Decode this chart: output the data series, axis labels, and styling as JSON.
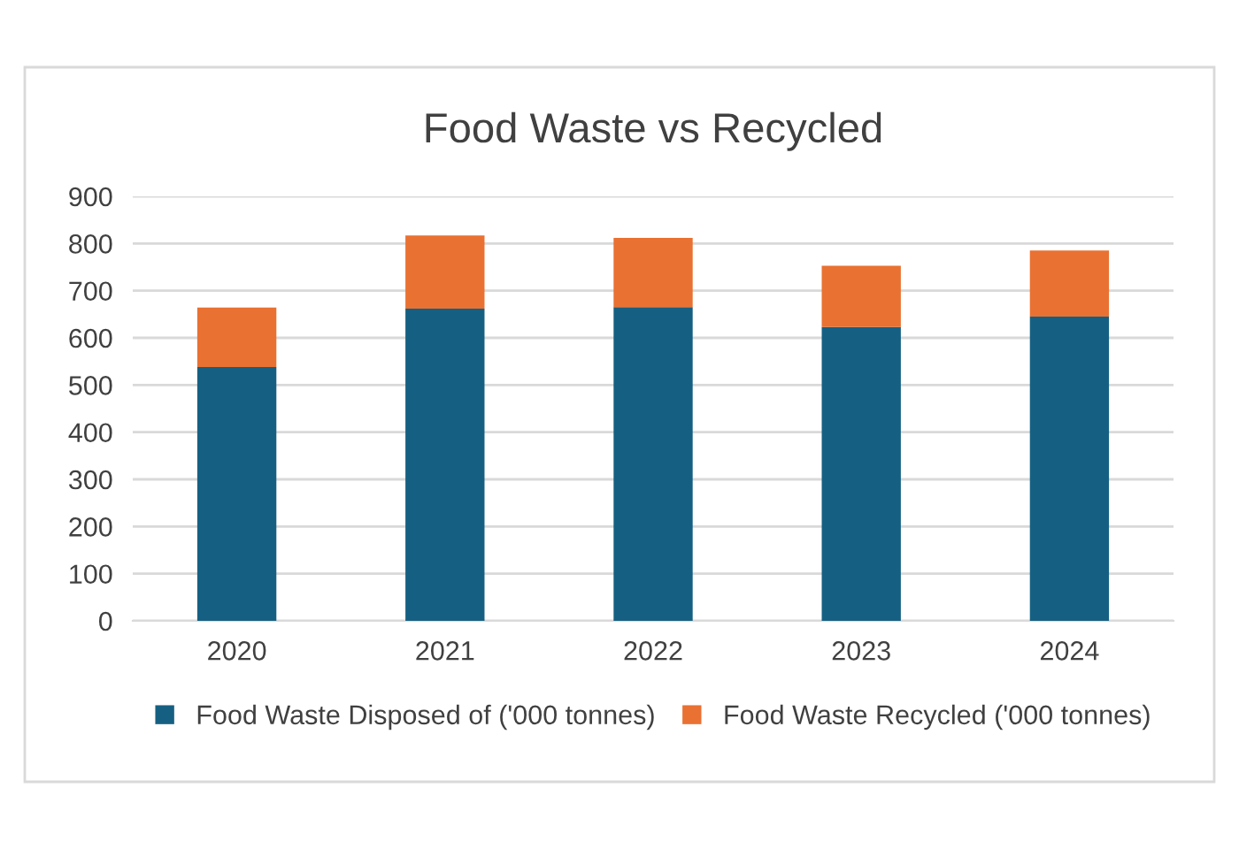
{
  "chart_data": {
    "type": "bar",
    "title": "Food Waste vs Recycled",
    "stacked": true,
    "categories": [
      "2020",
      "2021",
      "2022",
      "2023",
      "2024"
    ],
    "series": [
      {
        "name": "Food Waste Disposed of ('000 tonnes)",
        "color": "#156082",
        "values": [
          538,
          662,
          665,
          623,
          645
        ]
      },
      {
        "name": "Food Waste Recycled ('000 tonnes)",
        "color": "#e97132",
        "values": [
          126,
          155,
          147,
          130,
          140
        ]
      }
    ],
    "ylim": [
      0,
      900
    ],
    "yticks": [
      0,
      100,
      200,
      300,
      400,
      500,
      600,
      700,
      800,
      900
    ],
    "grid": "y",
    "legend": "bottom"
  }
}
